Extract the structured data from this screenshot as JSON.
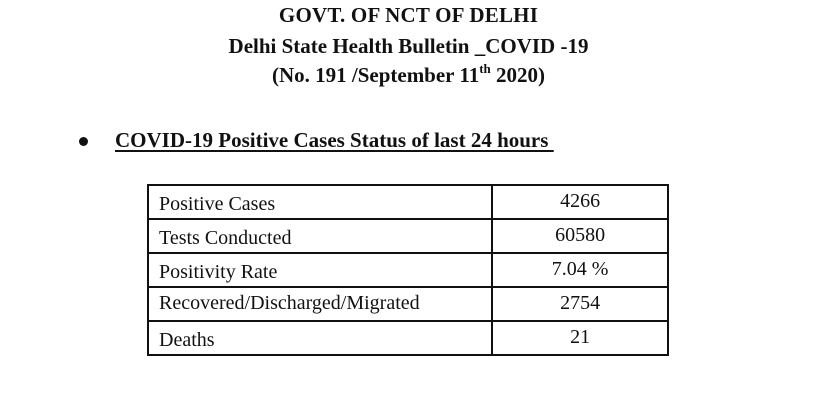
{
  "header": {
    "line1": "GOVT. OF NCT OF DELHI",
    "line2": "Delhi State Health Bulletin _COVID -19",
    "line3_before": "(No. 191 /September 11",
    "line3_sup": "th",
    "line3_after": " 2020)"
  },
  "section": {
    "title": "COVID-19 Positive Cases Status of last 24 hours "
  },
  "table": {
    "rows": [
      {
        "label": "Positive Cases",
        "value": "4266"
      },
      {
        "label": "Tests Conducted",
        "value": "60580"
      },
      {
        "label": "Positivity Rate",
        "value": "7.04 %"
      },
      {
        "label": "Recovered/Discharged/Migrated",
        "value": "2754"
      },
      {
        "label": "Deaths",
        "value": "21"
      }
    ]
  }
}
